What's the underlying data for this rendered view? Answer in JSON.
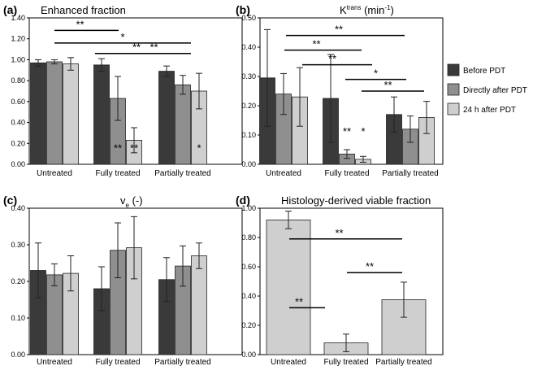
{
  "legend": [
    {
      "label": "Before PDT",
      "color": "#3a3a3a"
    },
    {
      "label": "Directly after PDT",
      "color": "#8f8f8f"
    },
    {
      "label": "24 h after PDT",
      "color": "#cfcfcf"
    }
  ],
  "chart_data": [
    {
      "panel": "(a)",
      "title": "Enhanced fraction",
      "type": "bar",
      "categories": [
        "Untreated",
        "Fully treated",
        "Partially treated"
      ],
      "ylim": [
        0,
        1.4
      ],
      "yticks": [
        "0.00",
        "0.20",
        "0.40",
        "0.60",
        "0.80",
        "1.00",
        "1.20",
        "1.40"
      ],
      "series": [
        {
          "name": "Before PDT",
          "values": [
            0.97,
            0.95,
            0.89
          ],
          "errors": [
            0.03,
            0.06,
            0.05
          ]
        },
        {
          "name": "Directly after PDT",
          "values": [
            0.98,
            0.63,
            0.76
          ],
          "errors": [
            0.02,
            0.21,
            0.09
          ]
        },
        {
          "name": "24 h after PDT",
          "values": [
            0.96,
            0.23,
            0.7
          ],
          "errors": [
            0.06,
            0.12,
            0.17
          ]
        }
      ],
      "brackets": [
        {
          "label": "**",
          "y": 1.28
        },
        {
          "label": "*",
          "y": 1.16
        },
        {
          "label": "**",
          "y": 1.06
        },
        {
          "label": "**",
          "y": 1.06
        }
      ],
      "bar_marks": [
        {
          "label": "**",
          "category": 1,
          "series": 1
        },
        {
          "label": "**",
          "category": 1,
          "series": 2
        },
        {
          "label": "*",
          "category": 2,
          "series": 2
        }
      ]
    },
    {
      "panel": "(b)",
      "title_main": "K",
      "title_sup": "trans",
      "title_unit": " (min",
      "title_unit_sup": "-1",
      "title_close": ")",
      "type": "bar",
      "categories": [
        "Untreated",
        "Fully treated",
        "Partially treated"
      ],
      "ylim": [
        0,
        0.5
      ],
      "yticks": [
        "0.00",
        "0.10",
        "0.20",
        "0.30",
        "0.40",
        "0.50"
      ],
      "series": [
        {
          "name": "Before PDT",
          "values": [
            0.295,
            0.225,
            0.17
          ],
          "errors": [
            0.165,
            0.15,
            0.06
          ]
        },
        {
          "name": "Directly after PDT",
          "values": [
            0.24,
            0.035,
            0.12
          ],
          "errors": [
            0.07,
            0.015,
            0.045
          ]
        },
        {
          "name": "24 h after PDT",
          "values": [
            0.23,
            0.017,
            0.16
          ],
          "errors": [
            0.1,
            0.01,
            0.055
          ]
        }
      ],
      "brackets": [
        {
          "label": "**",
          "y": 0.44
        },
        {
          "label": "**",
          "y": 0.39
        },
        {
          "label": "**",
          "y": 0.34
        },
        {
          "label": "*",
          "y": 0.29
        },
        {
          "label": "**",
          "y": 0.25
        }
      ],
      "bar_marks": [
        {
          "label": "**",
          "category": 1,
          "series": 1
        },
        {
          "label": "*",
          "category": 1,
          "series": 2
        }
      ]
    },
    {
      "panel": "(c)",
      "title_main": "v",
      "title_sub": "e",
      "title_unit": " (-)",
      "type": "bar",
      "categories": [
        "Untreated",
        "Fully treated",
        "Partially treated"
      ],
      "ylim": [
        0,
        0.4
      ],
      "yticks": [
        "0.00",
        "0.10",
        "0.20",
        "0.30",
        "0.40"
      ],
      "series": [
        {
          "name": "Before PDT",
          "values": [
            0.23,
            0.18,
            0.205
          ],
          "errors": [
            0.075,
            0.06,
            0.06
          ]
        },
        {
          "name": "Directly after PDT",
          "values": [
            0.218,
            0.285,
            0.242
          ],
          "errors": [
            0.03,
            0.075,
            0.055
          ]
        },
        {
          "name": "24 h after PDT",
          "values": [
            0.222,
            0.292,
            0.27
          ],
          "errors": [
            0.048,
            0.085,
            0.035
          ]
        }
      ]
    },
    {
      "panel": "(d)",
      "title": "Histology-derived viable fraction",
      "type": "bar",
      "categories": [
        "Untreated",
        "Fully treated",
        "Partially treated"
      ],
      "ylim": [
        0,
        1.0
      ],
      "yticks": [
        "0.00",
        "0.20",
        "0.40",
        "0.60",
        "0.80",
        "1.00"
      ],
      "series": [
        {
          "name": "24 h after PDT",
          "values": [
            0.92,
            0.08,
            0.375
          ],
          "errors": [
            0.06,
            0.06,
            0.12
          ]
        }
      ],
      "brackets": [
        {
          "label": "**",
          "y": 0.79
        },
        {
          "label": "**",
          "y": 0.56
        },
        {
          "label": "**",
          "y": 0.32
        }
      ]
    }
  ]
}
